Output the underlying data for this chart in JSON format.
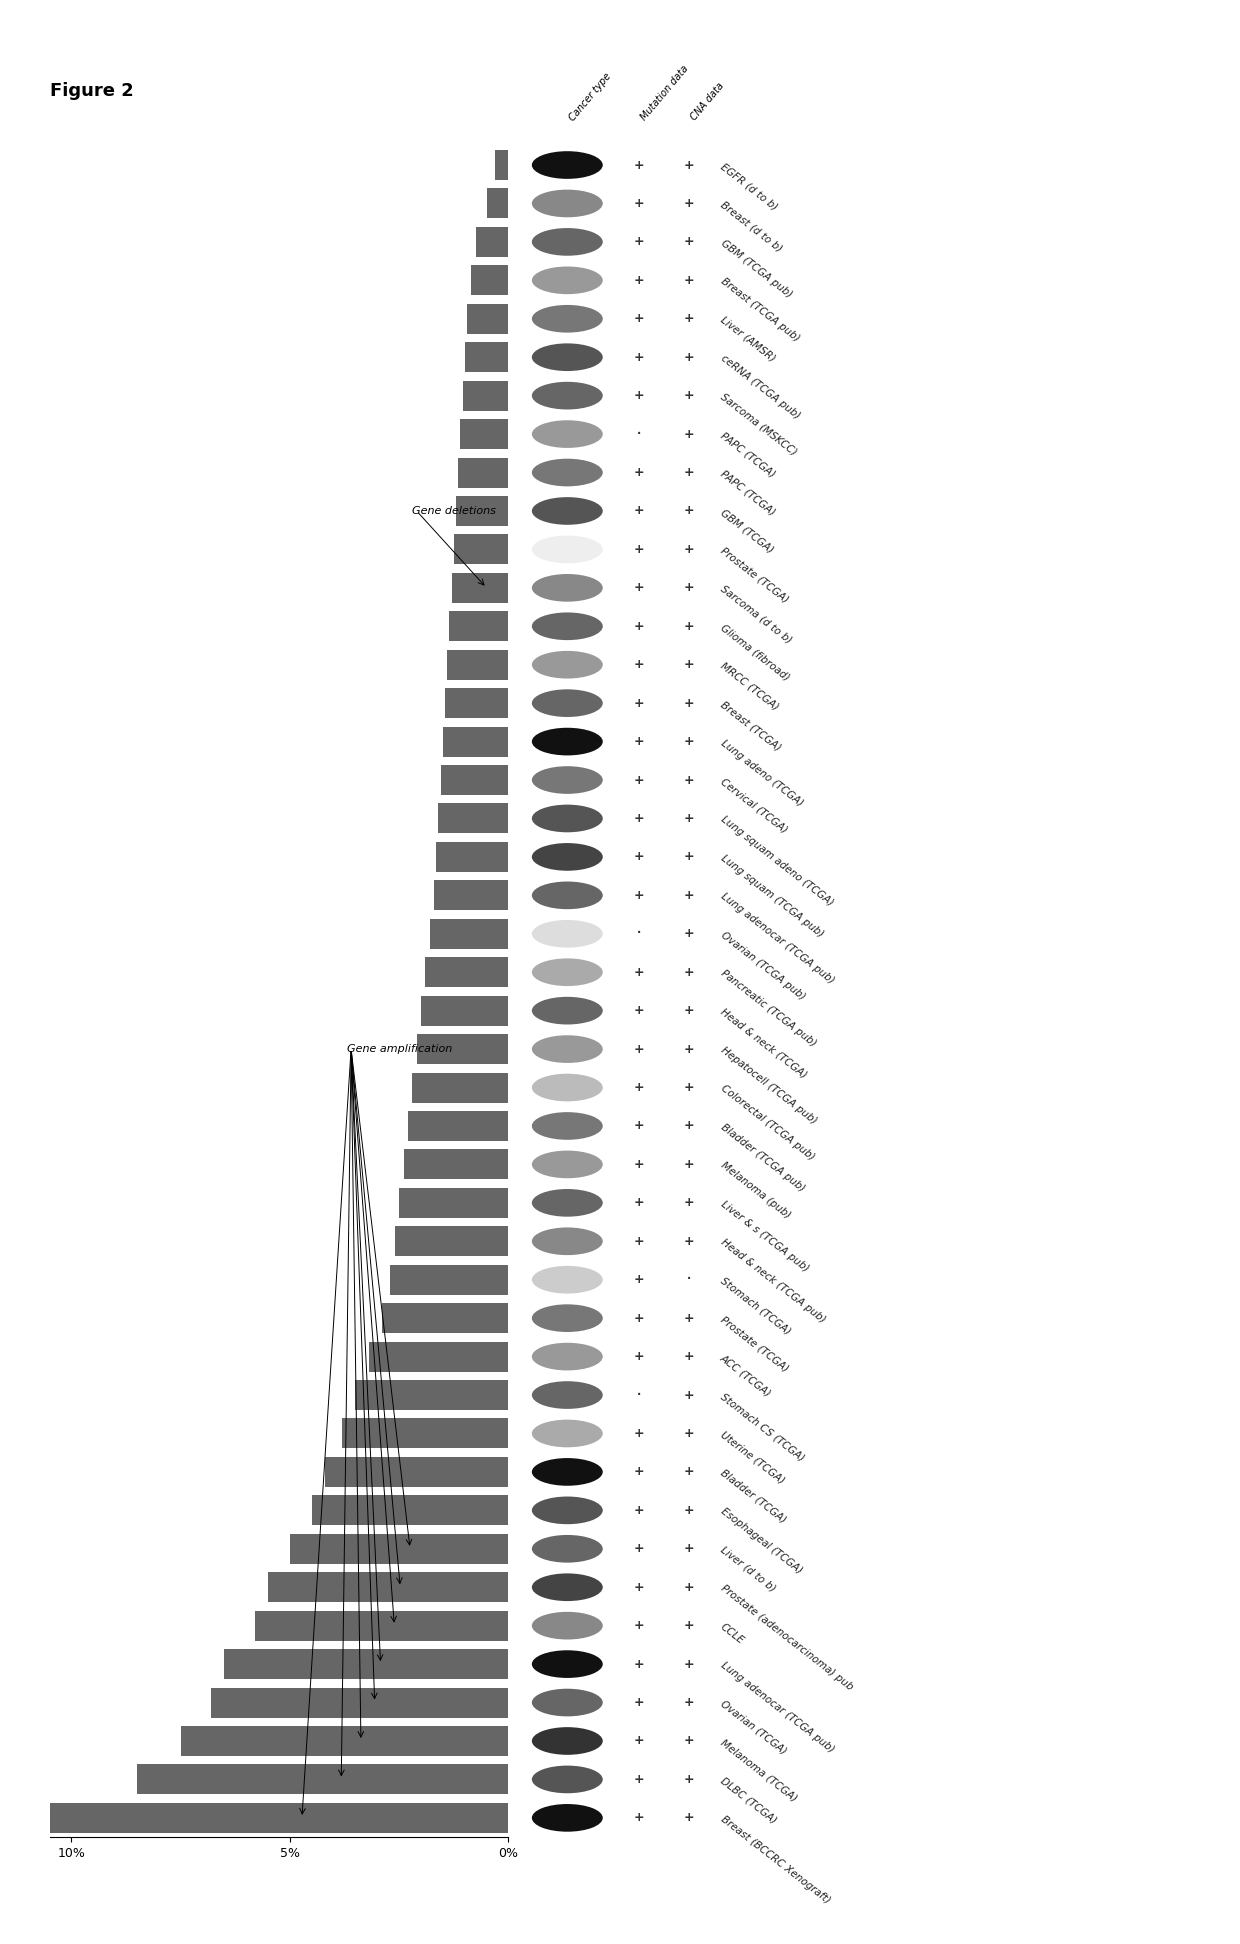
{
  "title": "Figure 2",
  "labels_bottom_to_top": [
    "Breast (BCCRC Xenograft)",
    "DLBC (TCGA)",
    "Melanoma (TCGA)",
    "Ovarian (TCGA)",
    "Lung adenocar (TCGA pub)",
    "CCLE",
    "Prostate (adenocarcinoma) pub",
    "Liver (d to b)",
    "Esophageal (TCGA)",
    "Bladder (TCGA)",
    "Uterine (TCGA)",
    "Stomach CS (TCGA)",
    "ACC (TCGA)",
    "Prostate (TCGA)",
    "Stomach (TCGA)",
    "Head & neck (TCGA pub)",
    "Liver & s (TCGA pub)",
    "Melanoma (pub)",
    "Bladder (TCGA pub)",
    "Colorectal (TCGA pub)",
    "Hepatocell (TCGA pub)",
    "Head & neck (TCGA)",
    "Pancreatic (TCGA pub)",
    "Ovarian (TCGA pub)",
    "Lung adenocar (TCGA pub)",
    "Lung squam (TCGA pub)",
    "Lung squam adeno (TCGA)",
    "Cervical (TCGA)",
    "Lung adeno (TCGA)",
    "Breast (TCGA)",
    "MRCC (TCGA)",
    "Glioma (fibroad)",
    "Sarcoma (d to b)",
    "Prostate (TCGA)",
    "GBM (TCGA)",
    "PAPC (TCGA)",
    "PAPC (TCGA)",
    "Sarcoma (MSKCC)",
    "ceRNA (TCGA pub)",
    "Liver (AMSR)",
    "Breast (TCGA pub)",
    "GBM (TCGA pub)",
    "Breast (d to b)",
    "EGFR (d to b)"
  ],
  "amp_values": [
    10.5,
    8.5,
    7.5,
    6.8,
    6.5,
    5.8,
    5.5,
    5.0,
    4.5,
    4.2,
    3.8,
    3.5,
    3.2,
    2.9,
    2.7,
    2.6,
    2.5,
    2.4,
    2.3,
    2.2,
    2.1,
    2.0,
    1.9,
    1.8,
    1.7,
    1.65,
    1.6,
    1.55,
    1.5,
    1.45,
    1.4,
    1.35,
    1.3,
    1.25,
    1.2,
    1.15,
    1.1,
    1.05,
    1.0,
    0.95,
    0.85,
    0.75,
    0.5,
    0.3
  ],
  "ellipse_colors": [
    "#111111",
    "#555555",
    "#333333",
    "#666666",
    "#111111",
    "#888888",
    "#444444",
    "#666666",
    "#555555",
    "#111111",
    "#aaaaaa",
    "#666666",
    "#999999",
    "#777777",
    "#cccccc",
    "#888888",
    "#666666",
    "#999999",
    "#777777",
    "#bbbbbb",
    "#999999",
    "#666666",
    "#aaaaaa",
    "#dddddd",
    "#666666",
    "#444444",
    "#555555",
    "#777777",
    "#111111",
    "#666666",
    "#999999",
    "#666666",
    "#888888",
    "#eeeeee",
    "#555555",
    "#777777",
    "#999999",
    "#666666",
    "#555555",
    "#777777",
    "#999999",
    "#666666",
    "#888888",
    "#111111"
  ],
  "mut_dots": [
    11,
    23,
    36
  ],
  "cna_dots": [
    14
  ],
  "bar_color": "#666666",
  "xlabel_ticks": [
    10,
    5,
    0
  ],
  "xlabel_labels": [
    "10%",
    "5%",
    "0%"
  ],
  "xlim_max": 10.5,
  "background": "#ffffff"
}
